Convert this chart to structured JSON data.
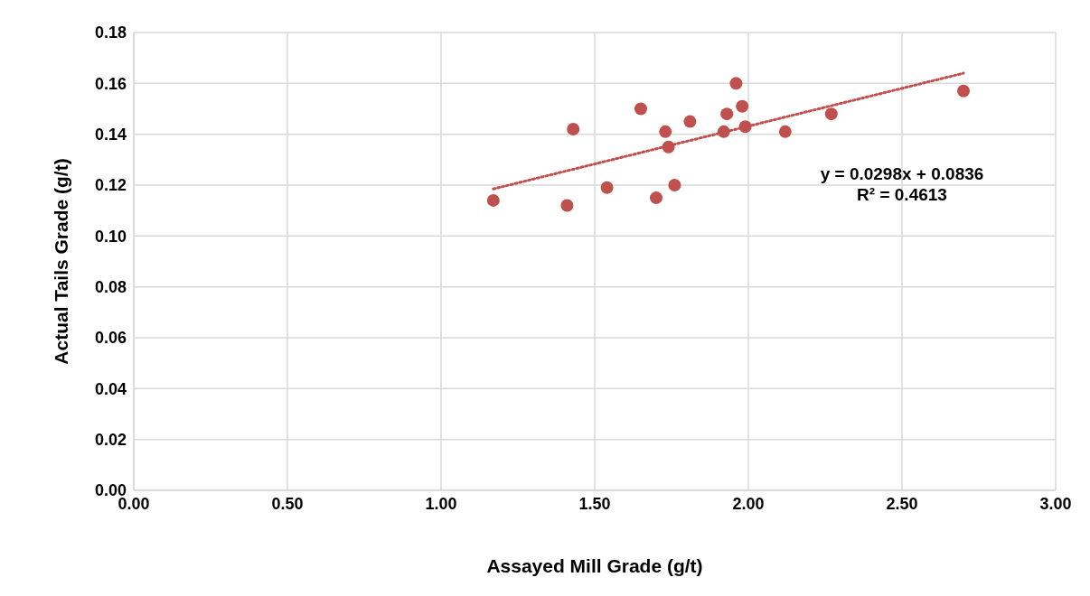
{
  "chart_data": {
    "type": "scatter",
    "xlabel": "Assayed Mill Grade (g/t)",
    "ylabel": "Actual Tails Grade (g/t)",
    "xlim": [
      0,
      3
    ],
    "xticks": [
      {
        "value": 0,
        "label": "0.00"
      },
      {
        "value": 0.5,
        "label": "0.50"
      },
      {
        "value": 1,
        "label": "1.00"
      },
      {
        "value": 1.5,
        "label": "1.50"
      },
      {
        "value": 2,
        "label": "2.00"
      },
      {
        "value": 2.5,
        "label": "2.50"
      },
      {
        "value": 3,
        "label": "3.00"
      }
    ],
    "ylim": [
      0,
      0.18
    ],
    "yticks": [
      {
        "value": 0,
        "label": "0.00"
      },
      {
        "value": 0.02,
        "label": "0.02"
      },
      {
        "value": 0.04,
        "label": "0.04"
      },
      {
        "value": 0.06,
        "label": "0.06"
      },
      {
        "value": 0.08,
        "label": "0.08"
      },
      {
        "value": 0.1,
        "label": "0.10"
      },
      {
        "value": 0.12,
        "label": "0.12"
      },
      {
        "value": 0.14,
        "label": "0.14"
      },
      {
        "value": 0.16,
        "label": "0.16"
      },
      {
        "value": 0.18,
        "label": "0.18"
      }
    ],
    "grid": true,
    "series": [
      {
        "marker": "circle",
        "color": "#c0504d",
        "x": [
          1.17,
          1.41,
          1.43,
          1.54,
          1.65,
          1.7,
          1.73,
          1.74,
          1.76,
          1.81,
          1.92,
          1.93,
          1.96,
          1.98,
          1.99,
          2.12,
          2.27,
          2.7
        ],
        "values": [
          0.114,
          0.112,
          0.142,
          0.119,
          0.15,
          0.115,
          0.141,
          0.135,
          0.12,
          0.145,
          0.141,
          0.148,
          0.16,
          0.151,
          0.143,
          0.141,
          0.148,
          0.157
        ]
      },
      {
        "type": "line",
        "color": "#c0504d",
        "line_style": "dotted",
        "x": [
          1.17,
          2.7
        ],
        "values": [
          0.1185,
          0.164
        ]
      }
    ],
    "annotations": [
      "y = 0.0298x + 0.0836\nR² = 0.4613"
    ]
  }
}
